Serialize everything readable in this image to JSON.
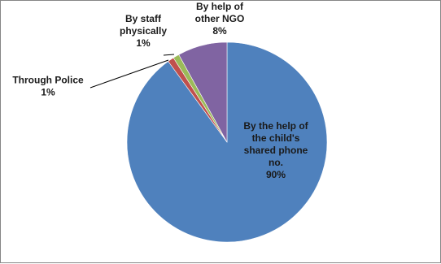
{
  "chart_data": {
    "type": "pie",
    "title": "",
    "slices": [
      {
        "name": "By the help of the child's shared phone no.",
        "label_lines": [
          "By the help of",
          "the child's",
          "shared phone",
          "no."
        ],
        "value": 90,
        "value_label": "90%",
        "color": "#4f81bd"
      },
      {
        "name": "Through Police",
        "label_lines": [
          "Through Police"
        ],
        "value": 1,
        "value_label": "1%",
        "color": "#c0504d"
      },
      {
        "name": "By staff physically",
        "label_lines": [
          "By staff",
          "physically"
        ],
        "value": 1,
        "value_label": "1%",
        "color": "#9bbb59"
      },
      {
        "name": "By help of other NGO",
        "label_lines": [
          "By help of",
          "other NGO"
        ],
        "value": 8,
        "value_label": "8%",
        "color": "#8064a2"
      }
    ],
    "start_angle_deg": 0,
    "direction": "clockwise",
    "legend": "none"
  }
}
